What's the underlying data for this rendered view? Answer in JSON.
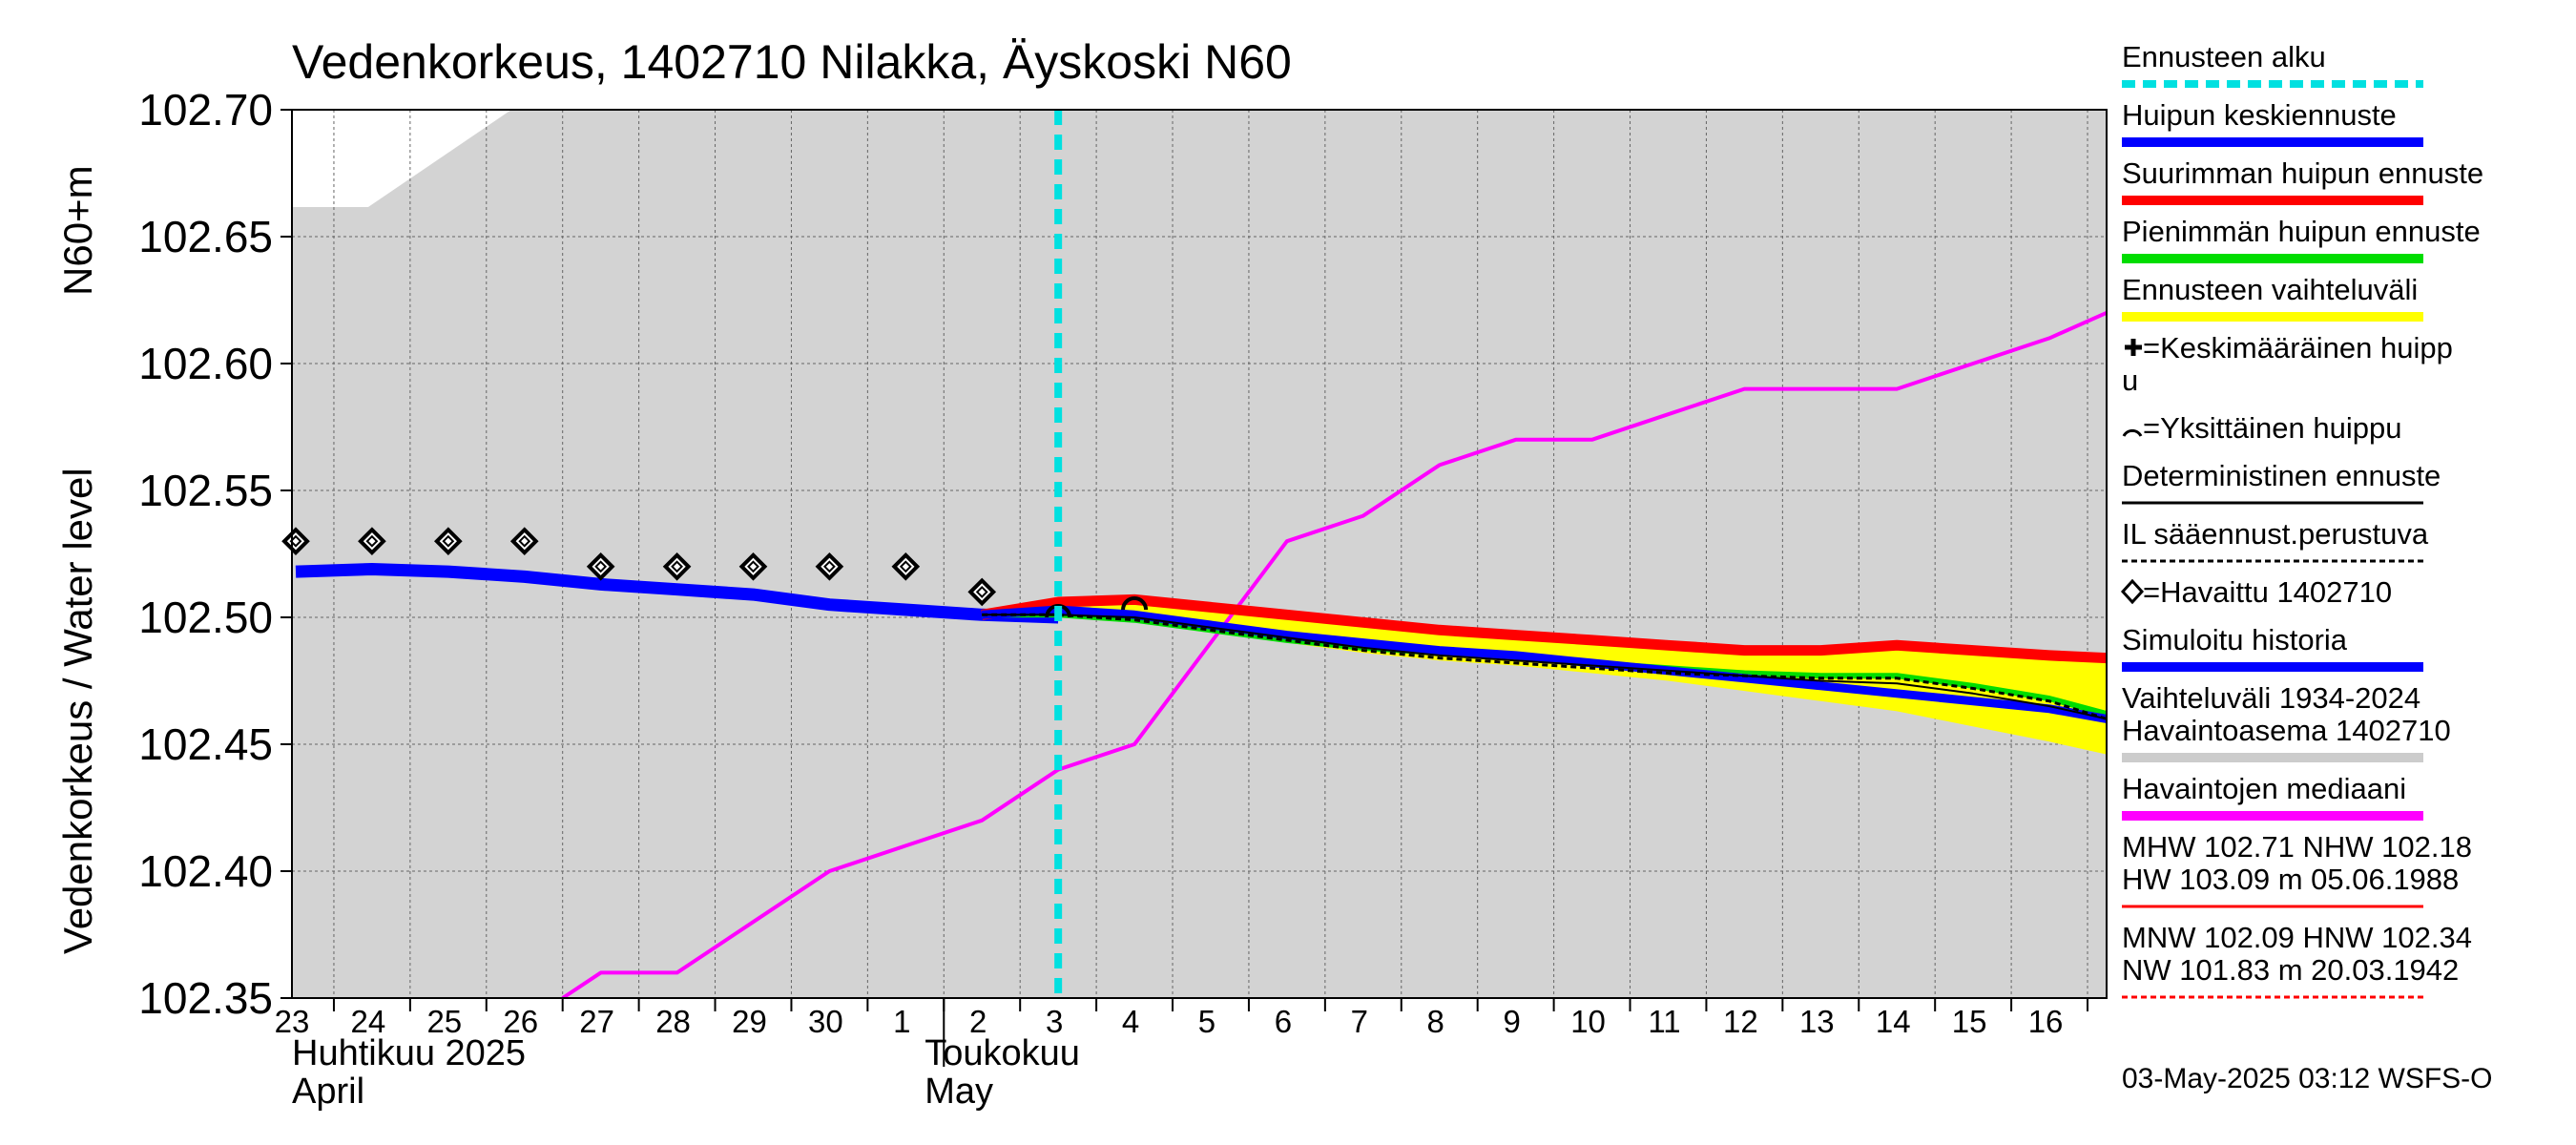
{
  "chart_data": {
    "type": "line",
    "title": "Vedenkorkeus, 1402710 Nilakka, Äyskoski N60",
    "ylabel": "Vedenkorkeus / Water level",
    "ylabel_unit": "N60+m",
    "ylim": [
      102.35,
      102.7
    ],
    "yticks": [
      "102.35",
      "102.40",
      "102.45",
      "102.50",
      "102.55",
      "102.60",
      "102.65",
      "102.70"
    ],
    "xlim": [
      -0.05,
      23.75
    ],
    "day_labels": [
      "23",
      "24",
      "25",
      "26",
      "27",
      "28",
      "29",
      "30",
      "1",
      "2",
      "3",
      "4",
      "5",
      "6",
      "7",
      "8",
      "9",
      "10",
      "11",
      "12",
      "13",
      "14",
      "15",
      "16"
    ],
    "month_labels": [
      {
        "fi": "Huhtikuu  2025",
        "en": "April",
        "day_index": 0
      },
      {
        "fi": "Toukokuu",
        "en": "May",
        "day_index": 9
      }
    ],
    "forecast_start_day_index": 10,
    "colors": {
      "background": "#d3d3d3",
      "forecast_start": "#00e0e0",
      "mean_forecast": "#0000ff",
      "max_forecast": "#ff0000",
      "min_forecast": "#00dd00",
      "range": "#ffff00",
      "median": "#ff00ff",
      "observed": "#000000",
      "simulated": "#0000ff"
    },
    "series": [
      {
        "name": "Havaittu 1402710",
        "style": "diamond",
        "x": [
          0,
          1,
          2,
          3,
          4,
          5,
          6,
          7,
          8,
          9
        ],
        "y": [
          102.53,
          102.53,
          102.53,
          102.53,
          102.52,
          102.52,
          102.52,
          102.52,
          102.52,
          102.51
        ]
      },
      {
        "name": "Havaintojen mediaani",
        "style": "line",
        "x": [
          3.5,
          4,
          5,
          6,
          7,
          8,
          9,
          10,
          11,
          12,
          13,
          14,
          15,
          16,
          17,
          18,
          19,
          20,
          21,
          22,
          23,
          23.75
        ],
        "y": [
          102.35,
          102.36,
          102.36,
          102.38,
          102.4,
          102.41,
          102.42,
          102.44,
          102.45,
          102.49,
          102.53,
          102.54,
          102.56,
          102.57,
          102.57,
          102.58,
          102.59,
          102.59,
          102.59,
          102.6,
          102.61,
          102.62
        ]
      },
      {
        "name": "Simuloitu historia",
        "style": "line",
        "x": [
          0,
          1,
          2,
          3,
          4,
          5,
          6,
          7,
          8,
          9,
          10
        ],
        "y": [
          102.518,
          102.519,
          102.518,
          102.516,
          102.513,
          102.511,
          102.509,
          102.505,
          102.503,
          102.501,
          102.5
        ]
      },
      {
        "name": "Ennusteen vaihteluväli (upper)",
        "style": "band-upper",
        "x": [
          9,
          10,
          11,
          12,
          13,
          14,
          15,
          16,
          17,
          18,
          19,
          20,
          21,
          22,
          23,
          23.75
        ],
        "y": [
          102.501,
          102.506,
          102.507,
          102.505,
          102.502,
          102.499,
          102.496,
          102.494,
          102.492,
          102.49,
          102.489,
          102.488,
          102.489,
          102.488,
          102.486,
          102.485
        ]
      },
      {
        "name": "Ennusteen vaihteluväli (lower)",
        "style": "band-lower",
        "x": [
          9,
          10,
          11,
          12,
          13,
          14,
          15,
          16,
          17,
          18,
          19,
          20,
          21,
          22,
          23,
          23.75
        ],
        "y": [
          102.501,
          102.5,
          102.498,
          102.494,
          102.49,
          102.486,
          102.483,
          102.481,
          102.478,
          102.475,
          102.471,
          102.467,
          102.463,
          102.457,
          102.451,
          102.446
        ]
      },
      {
        "name": "Suurimman huipun ennuste",
        "style": "line",
        "x": [
          9,
          10,
          11,
          12,
          13,
          14,
          15,
          16,
          17,
          18,
          19,
          20,
          21,
          22,
          23,
          23.75
        ],
        "y": [
          102.501,
          102.506,
          102.507,
          102.504,
          102.501,
          102.498,
          102.495,
          102.493,
          102.491,
          102.489,
          102.487,
          102.487,
          102.489,
          102.487,
          102.485,
          102.484
        ]
      },
      {
        "name": "Pienimmän huipun ennuste",
        "style": "line",
        "x": [
          9,
          10,
          11,
          12,
          13,
          14,
          15,
          16,
          17,
          18,
          19,
          20,
          21,
          22,
          23,
          23.75
        ],
        "y": [
          102.501,
          102.501,
          102.499,
          102.495,
          102.491,
          102.488,
          102.486,
          102.485,
          102.482,
          102.48,
          102.478,
          102.477,
          102.477,
          102.473,
          102.468,
          102.462
        ]
      },
      {
        "name": "Huipun keskiennuste",
        "style": "line",
        "x": [
          9,
          10,
          11,
          12,
          13,
          14,
          15,
          16,
          17,
          18,
          19,
          20,
          21,
          22,
          23,
          23.75
        ],
        "y": [
          102.501,
          102.503,
          102.501,
          102.497,
          102.493,
          102.49,
          102.487,
          102.485,
          102.482,
          102.479,
          102.476,
          102.473,
          102.47,
          102.467,
          102.464,
          102.46
        ]
      },
      {
        "name": "IL sääennust.perustuva",
        "style": "dashed",
        "x": [
          9,
          10,
          11,
          12,
          13,
          14,
          15,
          16,
          17,
          18,
          19,
          20,
          21,
          22,
          23,
          23.75
        ],
        "y": [
          102.501,
          102.501,
          102.499,
          102.495,
          102.491,
          102.487,
          102.484,
          102.482,
          102.48,
          102.478,
          102.477,
          102.476,
          102.476,
          102.472,
          102.467,
          102.46
        ]
      },
      {
        "name": "Deterministinen ennuste",
        "style": "line",
        "x": [
          9,
          10,
          11,
          12,
          13,
          14,
          15,
          16,
          17,
          18,
          19,
          20,
          21,
          22,
          23,
          23.75
        ],
        "y": [
          102.501,
          102.501,
          102.5,
          102.496,
          102.492,
          102.488,
          102.485,
          102.483,
          102.481,
          102.479,
          102.477,
          102.475,
          102.474,
          102.47,
          102.465,
          102.46
        ]
      }
    ],
    "single_peaks": [
      {
        "name": "Yksittäinen huippu",
        "x": [
          10,
          11
        ],
        "y": [
          102.503,
          102.506
        ]
      }
    ],
    "legend": [
      {
        "label": "Ennusteen alku",
        "swatch": "dashed",
        "color": "#00e0e0"
      },
      {
        "label": "Huipun keskiennuste",
        "swatch": "line",
        "color": "#0000ff"
      },
      {
        "label": "Suurimman huipun ennuste",
        "swatch": "line",
        "color": "#ff0000"
      },
      {
        "label": "Pienimmän huipun ennuste",
        "swatch": "line",
        "color": "#00dd00"
      },
      {
        "label": "Ennusteen vaihteluväli",
        "swatch": "line",
        "color": "#ffff00"
      },
      {
        "label": "=Keskimääräinen huipp",
        "label_cont": "u",
        "swatch": "plus",
        "color": "#000000"
      },
      {
        "label": "=Yksittäinen huippu",
        "swatch": "arc",
        "color": "#000000"
      },
      {
        "label": "Deterministinen ennuste",
        "swatch": "thin",
        "color": "#000000"
      },
      {
        "label": "IL sääennust.perustuva",
        "swatch": "dotted",
        "color": "#000000"
      },
      {
        "label": "=Havaittu 1402710",
        "swatch": "diamond",
        "color": "#000000"
      },
      {
        "label": "Simuloitu historia",
        "swatch": "line",
        "color": "#0000ff"
      },
      {
        "label": "Vaihteluväli 1934-2024",
        "label_cont": " Havaintoasema 1402710",
        "swatch": "line",
        "color": "#cccccc"
      },
      {
        "label": "Havaintojen mediaani",
        "swatch": "line",
        "color": "#ff00ff"
      },
      {
        "label": "MHW 102.71 NHW 102.18",
        "label_cont": "HW 103.09 m 05.06.1988",
        "swatch": "thin",
        "color": "#ff0000"
      },
      {
        "label": "MNW 102.09 HNW 102.34",
        "label_cont": "NW 101.83 m 20.03.1942",
        "swatch": "dotted",
        "color": "#ff0000"
      }
    ],
    "footer": "03-May-2025 03:12 WSFS-O"
  }
}
